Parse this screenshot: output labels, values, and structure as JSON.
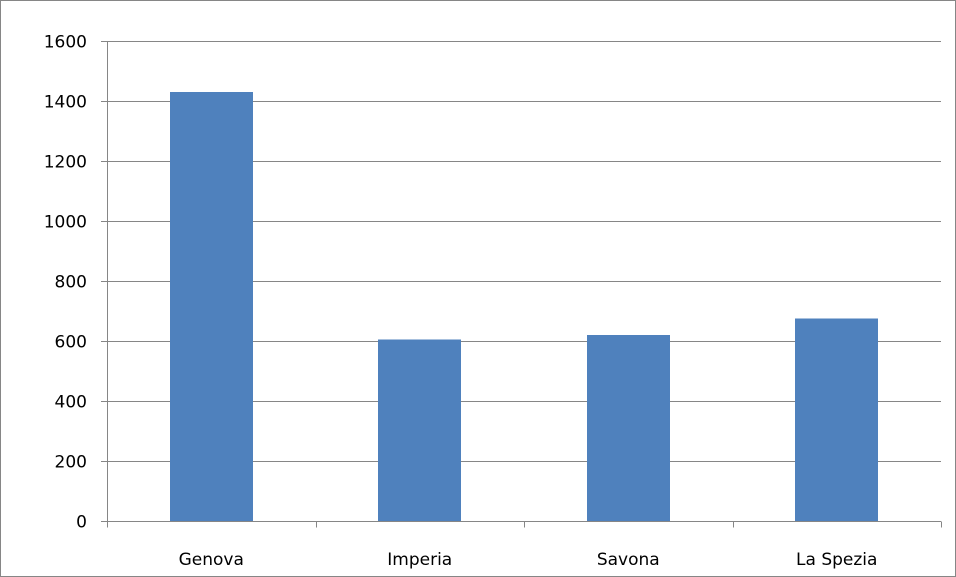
{
  "chart_data": {
    "type": "bar",
    "categories": [
      "Genova",
      "Imperia",
      "Savona",
      "La Spezia"
    ],
    "series": [
      {
        "values": [
          1430,
          605,
          620,
          675
        ]
      }
    ],
    "title": "",
    "xlabel": "",
    "ylabel": "",
    "ylim": [
      0,
      1600
    ],
    "yticks": [
      "0",
      "200",
      "400",
      "600",
      "800",
      "1000",
      "1200",
      "1400",
      "1600"
    ],
    "grid": true,
    "legend": "none",
    "colors": {
      "bar": "#4F81BD",
      "grid": "#868686",
      "frame": "#868686"
    }
  }
}
